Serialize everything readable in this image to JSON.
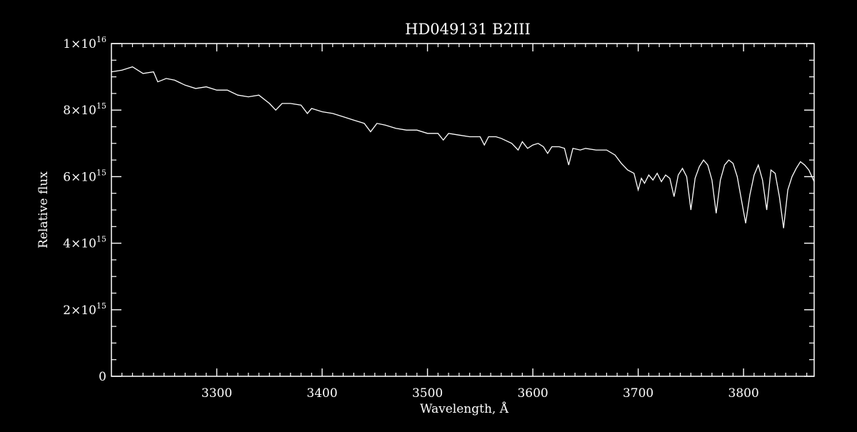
{
  "chart_data": {
    "type": "line",
    "title": "HD049131   B2III",
    "xlabel": "Wavelength, Å",
    "ylabel": "Relative flux",
    "xlim": [
      3200,
      3867
    ],
    "ylim": [
      0,
      10000000000000000
    ],
    "grid": false,
    "legend": "none",
    "colors": {
      "background": "#000000",
      "foreground": "#ffffff"
    },
    "x_ticks": [
      {
        "value": 3300,
        "label": "3300"
      },
      {
        "value": 3400,
        "label": "3400"
      },
      {
        "value": 3500,
        "label": "3500"
      },
      {
        "value": 3600,
        "label": "3600"
      },
      {
        "value": 3700,
        "label": "3700"
      },
      {
        "value": 3800,
        "label": "3800"
      }
    ],
    "y_ticks": [
      {
        "value": 0,
        "mantissa": "0",
        "exponent": ""
      },
      {
        "value": 2000000000000000,
        "mantissa": "2×10",
        "exponent": "15"
      },
      {
        "value": 4000000000000000,
        "mantissa": "4×10",
        "exponent": "15"
      },
      {
        "value": 6000000000000000,
        "mantissa": "6×10",
        "exponent": "15"
      },
      {
        "value": 8000000000000000,
        "mantissa": "8×10",
        "exponent": "15"
      },
      {
        "value": 10000000000000000,
        "mantissa": "1×10",
        "exponent": "16"
      }
    ],
    "series": [
      {
        "x": [
          3200,
          3210,
          3220,
          3230,
          3240,
          3244,
          3248,
          3252,
          3260,
          3270,
          3280,
          3290,
          3300,
          3310,
          3320,
          3330,
          3340,
          3350,
          3356,
          3362,
          3370,
          3380,
          3386,
          3390,
          3400,
          3410,
          3420,
          3430,
          3440,
          3446,
          3452,
          3460,
          3470,
          3480,
          3490,
          3500,
          3510,
          3515,
          3520,
          3530,
          3540,
          3550,
          3554,
          3558,
          3565,
          3570,
          3580,
          3586,
          3590,
          3595,
          3600,
          3605,
          3610,
          3614,
          3618,
          3625,
          3630,
          3634,
          3638,
          3645,
          3650,
          3660,
          3670,
          3678,
          3684,
          3690,
          3696,
          3700,
          3703,
          3706,
          3710,
          3714,
          3718,
          3722,
          3726,
          3730,
          3734,
          3738,
          3742,
          3746,
          3750,
          3754,
          3758,
          3762,
          3766,
          3770,
          3774,
          3778,
          3782,
          3786,
          3790,
          3794,
          3798,
          3802,
          3806,
          3810,
          3814,
          3818,
          3822,
          3826,
          3830,
          3834,
          3838,
          3842,
          3846,
          3850,
          3854,
          3858,
          3862,
          3867
        ],
        "values": [
          9150000000000000.0,
          9200000000000000.0,
          9300000000000000.0,
          9100000000000000.0,
          9150000000000000.0,
          8850000000000000.0,
          8900000000000000.0,
          8950000000000000.0,
          8900000000000000.0,
          8750000000000000.0,
          8650000000000000.0,
          8700000000000000.0,
          8600000000000000.0,
          8600000000000000.0,
          8450000000000000.0,
          8400000000000000.0,
          8450000000000000.0,
          8200000000000000.0,
          8000000000000000.0,
          8200000000000000.0,
          8200000000000000.0,
          8150000000000000.0,
          7900000000000000.0,
          8050000000000000.0,
          7950000000000000.0,
          7900000000000000.0,
          7800000000000000.0,
          7700000000000000.0,
          7600000000000000.0,
          7350000000000000.0,
          7600000000000000.0,
          7550000000000000.0,
          7450000000000000.0,
          7400000000000000.0,
          7400000000000000.0,
          7300000000000000.0,
          7300000000000000.0,
          7100000000000000.0,
          7300000000000000.0,
          7250000000000000.0,
          7200000000000000.0,
          7200000000000000.0,
          6950000000000000.0,
          7200000000000000.0,
          7200000000000000.0,
          7150000000000000.0,
          7000000000000000.0,
          6800000000000000.0,
          7050000000000000.0,
          6850000000000000.0,
          6950000000000000.0,
          7000000000000000.0,
          6900000000000000.0,
          6700000000000000.0,
          6900000000000000.0,
          6900000000000000.0,
          6850000000000000.0,
          6350000000000000.0,
          6850000000000000.0,
          6800000000000000.0,
          6850000000000000.0,
          6800000000000000.0,
          6800000000000000.0,
          6650000000000000.0,
          6400000000000000.0,
          6200000000000000.0,
          6100000000000000.0,
          5600000000000000.0,
          5950000000000000.0,
          5800000000000000.0,
          6050000000000000.0,
          5900000000000000.0,
          6100000000000000.0,
          5850000000000000.0,
          6050000000000000.0,
          5950000000000000.0,
          5400000000000000.0,
          6050000000000000.0,
          6250000000000000.0,
          6000000000000000.0,
          5000000000000000.0,
          5950000000000000.0,
          6300000000000000.0,
          6500000000000000.0,
          6350000000000000.0,
          5900000000000000.0,
          4900000000000000.0,
          5900000000000000.0,
          6350000000000000.0,
          6500000000000000.0,
          6400000000000000.0,
          6000000000000000.0,
          5300000000000000.0,
          4600000000000000.0,
          5450000000000000.0,
          6050000000000000.0,
          6350000000000000.0,
          5900000000000000.0,
          5000000000000000.0,
          6200000000000000.0,
          6100000000000000.0,
          5400000000000000.0,
          4450000000000000.0,
          5600000000000000.0,
          6000000000000000.0,
          6250000000000000.0,
          6450000000000000.0,
          6350000000000000.0,
          6200000000000000.0,
          5850000000000000.0
        ]
      }
    ]
  }
}
